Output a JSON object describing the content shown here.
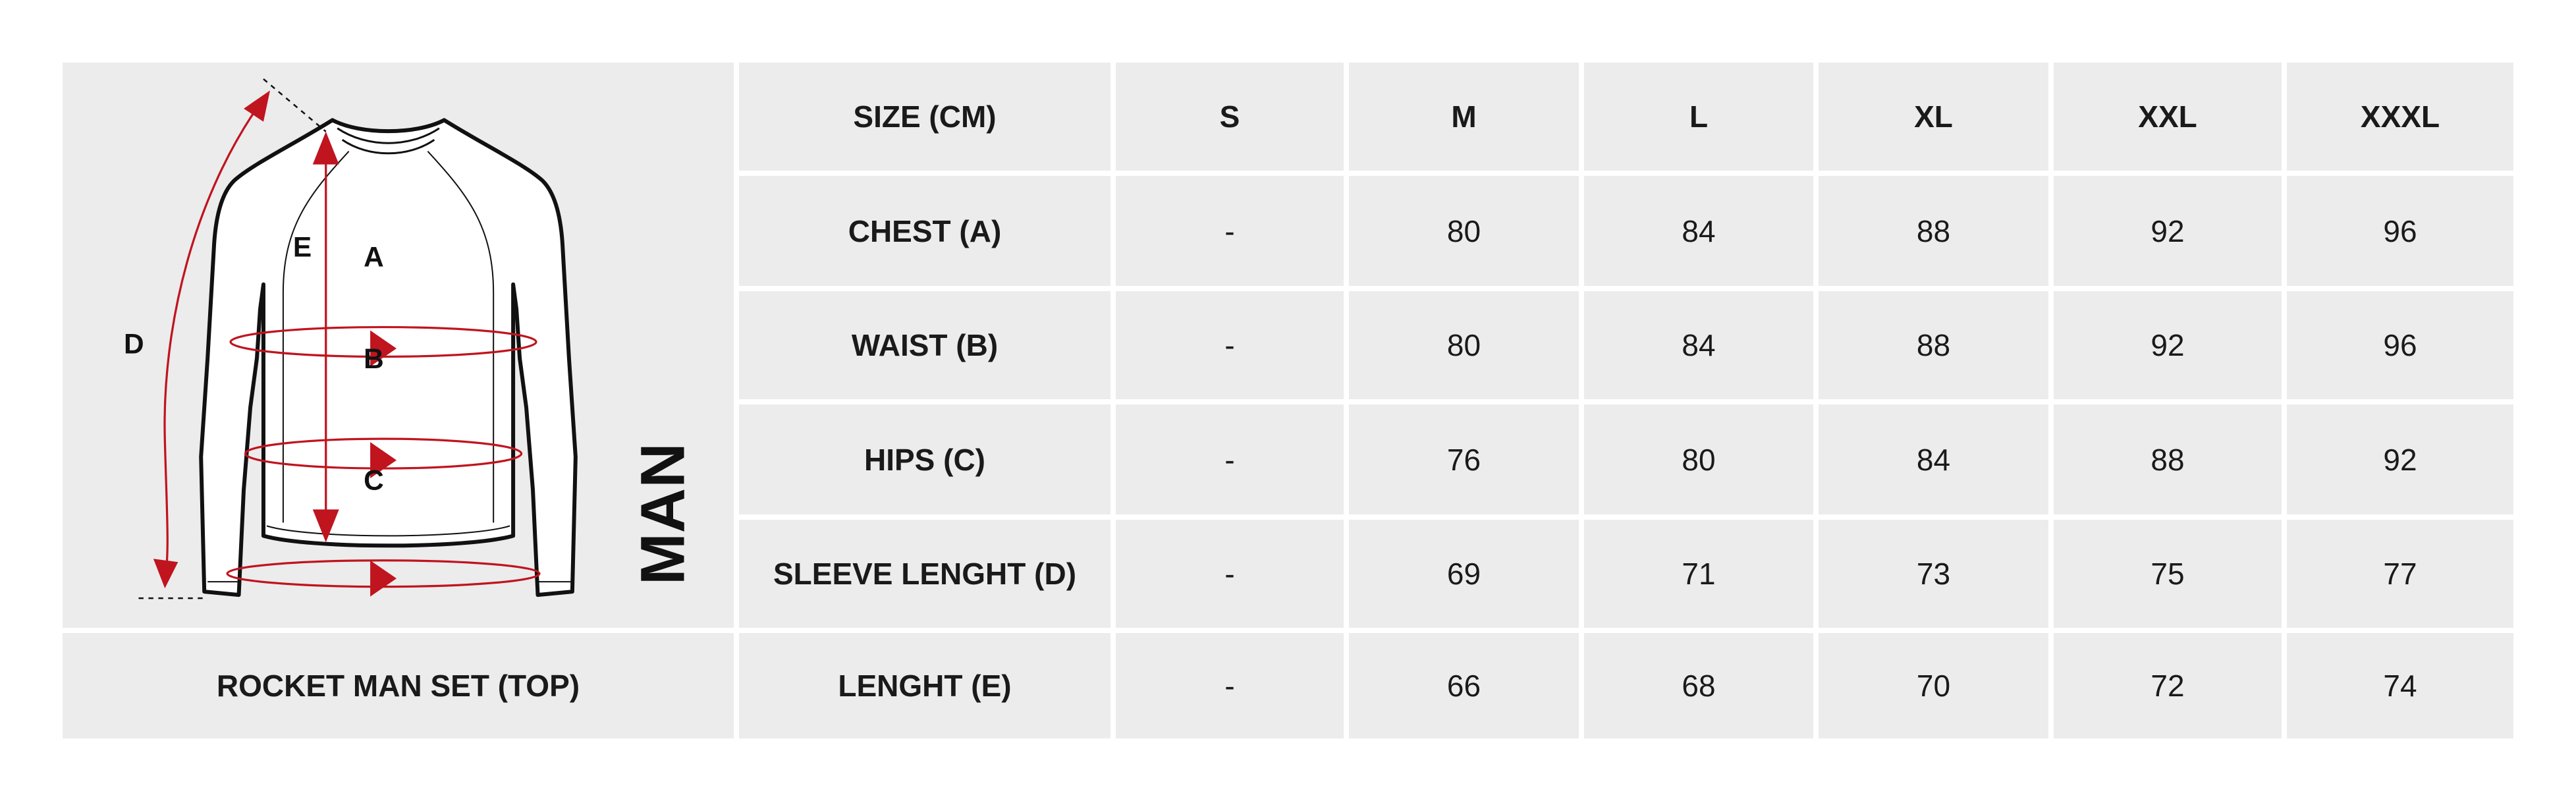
{
  "product_name": "ROCKET MAN SET (TOP)",
  "gender_label": "MAN",
  "diagram_labels": {
    "a": "A",
    "b": "B",
    "c": "C",
    "d": "D",
    "e": "E"
  },
  "colors": {
    "cell_bg": "#ececec",
    "accent": "#c0141f",
    "text": "#1a1a1a"
  },
  "table": {
    "header": {
      "label": "SIZE (CM)",
      "sizes": [
        "S",
        "M",
        "L",
        "XL",
        "XXL",
        "XXXL"
      ]
    },
    "rows": [
      {
        "label": "CHEST (A)",
        "values": [
          "-",
          "80",
          "84",
          "88",
          "92",
          "96"
        ]
      },
      {
        "label": "WAIST (B)",
        "values": [
          "-",
          "80",
          "84",
          "88",
          "92",
          "96"
        ]
      },
      {
        "label": "HIPS (C)",
        "values": [
          "-",
          "76",
          "80",
          "84",
          "88",
          "92"
        ]
      },
      {
        "label": "SLEEVE LENGHT (D)",
        "values": [
          "-",
          "69",
          "71",
          "73",
          "75",
          "77"
        ]
      },
      {
        "label": "LENGHT (E)",
        "values": [
          "-",
          "66",
          "68",
          "70",
          "72",
          "74"
        ]
      }
    ]
  }
}
